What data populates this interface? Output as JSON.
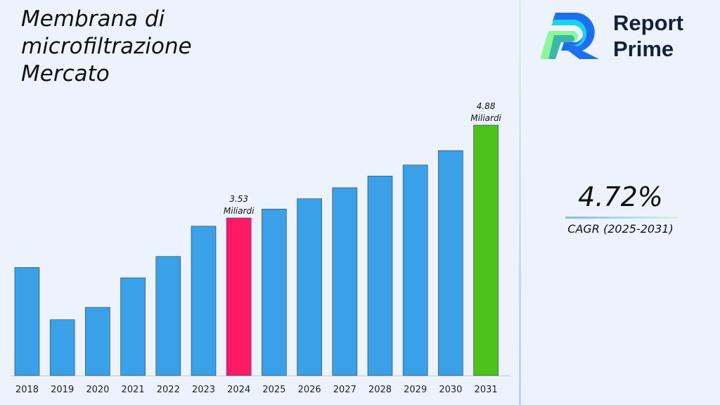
{
  "title_lines": [
    "Membrana di",
    "microfiltrazione",
    "Mercato"
  ],
  "brand": {
    "line1": "Report",
    "line2": "Prime"
  },
  "cagr": {
    "value": "4.72%",
    "label": "CAGR (2025-2031)"
  },
  "colors": {
    "default_bar": "#3aa0e8",
    "highlight_2024": "#ff1a66",
    "highlight_2031": "#4cc21a"
  },
  "chart_data": {
    "type": "bar",
    "categories": [
      "2018",
      "2019",
      "2020",
      "2021",
      "2022",
      "2023",
      "2024",
      "2025",
      "2026",
      "2027",
      "2028",
      "2029",
      "2030",
      "2031"
    ],
    "values": [
      2.81,
      2.05,
      2.23,
      2.66,
      2.97,
      3.41,
      3.53,
      3.66,
      3.81,
      3.97,
      4.14,
      4.3,
      4.51,
      4.88
    ],
    "unit": "Miliardi",
    "data_labels": [
      {
        "category": "2024",
        "value": "3.53",
        "unit": "Miliardi"
      },
      {
        "category": "2031",
        "value": "4.88",
        "unit": "Miliardi"
      }
    ],
    "grid": false,
    "legend": "none"
  }
}
